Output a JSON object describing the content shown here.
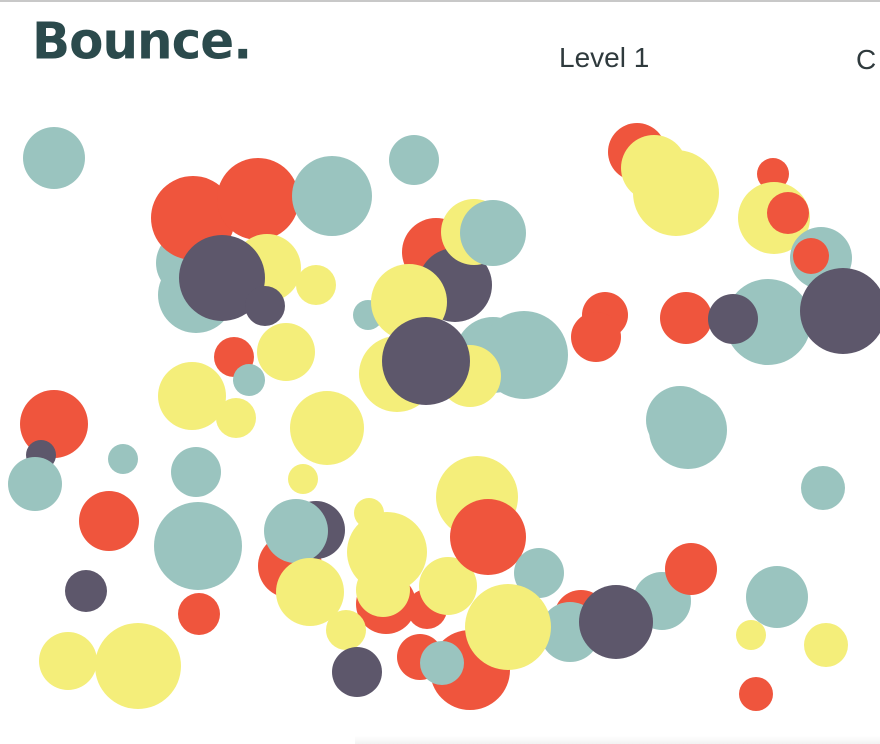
{
  "header": {
    "logo_text": "Bounce.",
    "level_text": "Level 1",
    "right_text_partial": "C"
  },
  "colors": {
    "teal": "#9ac4bf",
    "red": "#ef553d",
    "yellow": "#f4ee7a",
    "purple": "#5d576b",
    "logo": "#2b4a4c"
  }
}
